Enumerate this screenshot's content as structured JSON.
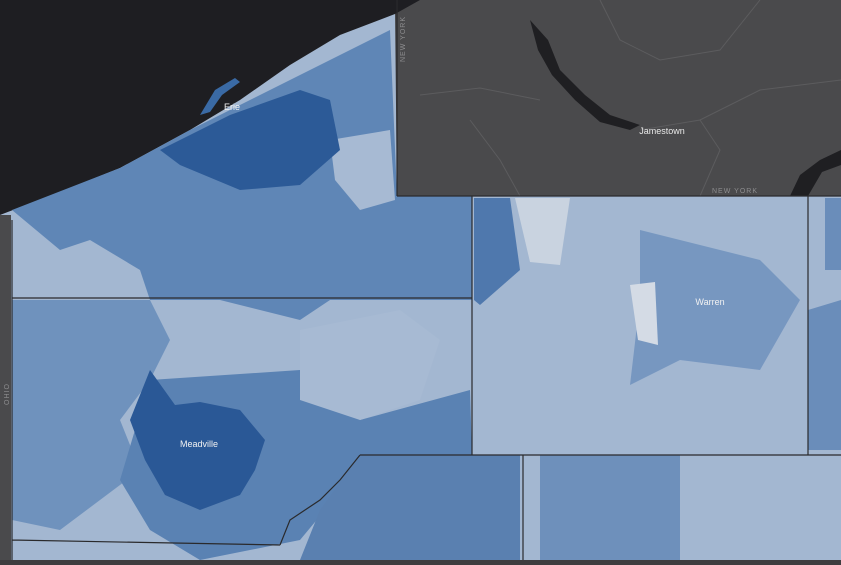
{
  "places": [
    {
      "label": "Erie"
    },
    {
      "label": "Jamestown"
    },
    {
      "label": "Warren"
    },
    {
      "label": "Meadville"
    }
  ],
  "state_labels": [
    {
      "label": "NEW YORK"
    },
    {
      "label": "NEW YORK"
    },
    {
      "label": "OHIO"
    }
  ]
}
